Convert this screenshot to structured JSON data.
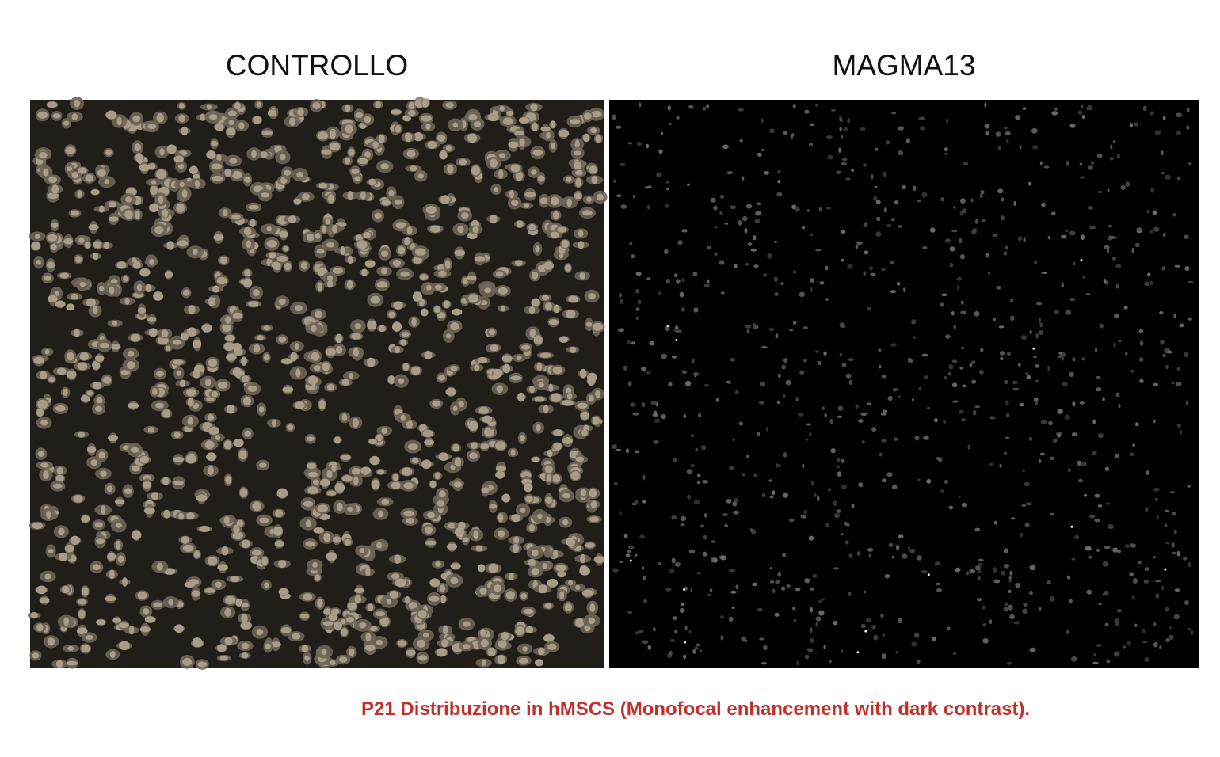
{
  "panels": [
    {
      "title": "CONTROLLO"
    },
    {
      "title": "MAGMA13"
    }
  ],
  "caption": "P21 Distribuzione in hMSCS (Monofocal enhancement with dark contrast)."
}
